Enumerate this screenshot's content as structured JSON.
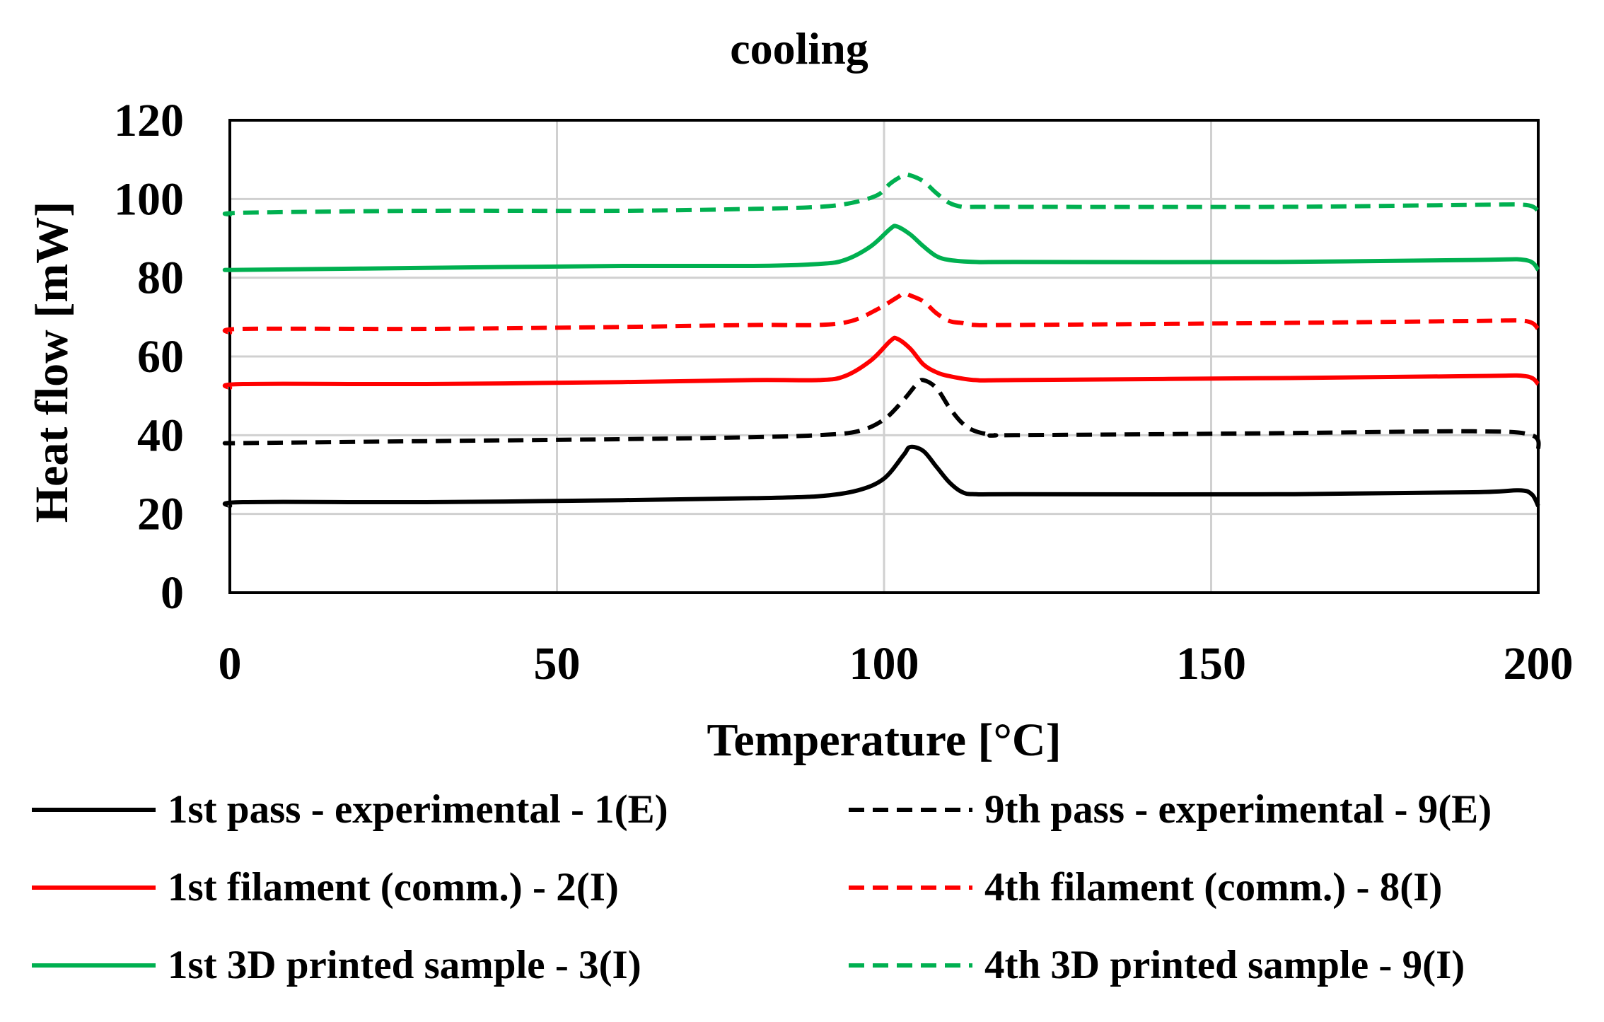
{
  "chart_data": {
    "type": "line",
    "title": "cooling",
    "xlabel": "Temperature [°C]",
    "ylabel": "Heat flow [mW]",
    "xlim": [
      0,
      200
    ],
    "ylim": [
      0,
      120
    ],
    "xticks": [
      "0",
      "50",
      "100",
      "150",
      "200"
    ],
    "yticks": [
      "0",
      "20",
      "40",
      "60",
      "80",
      "100",
      "120"
    ],
    "grid": true,
    "legend_position": "bottom",
    "series": [
      {
        "name": "1st pass - experimental - 1(E)",
        "color": "#000000",
        "dash": "solid",
        "x": [
          0,
          2,
          30,
          60,
          80,
          90,
          96,
          100,
          103,
          104,
          106,
          108,
          110,
          112,
          114,
          120,
          160,
          190,
          197,
          199,
          200
        ],
        "y": [
          22,
          23,
          23,
          23.5,
          24,
          24.5,
          26,
          29,
          35,
          37,
          36,
          32,
          28,
          25.5,
          25,
          25,
          25,
          25.5,
          26,
          25,
          22
        ]
      },
      {
        "name": "9th pass - experimental - 9(E)",
        "color": "#000000",
        "dash": "dashed",
        "x": [
          0,
          2,
          30,
          60,
          80,
          90,
          96,
          100,
          103,
          105,
          106,
          108,
          110,
          112,
          114,
          117,
          120,
          160,
          190,
          199,
          200
        ],
        "y": [
          38,
          38,
          38.5,
          39,
          39.5,
          40,
          41,
          44,
          49,
          53,
          54,
          52,
          47,
          43,
          41,
          40,
          40,
          40.5,
          41,
          40,
          36
        ]
      },
      {
        "name": "1st filament (comm.) - 2(I)",
        "color": "#ff0000",
        "dash": "solid",
        "x": [
          0,
          2,
          30,
          60,
          80,
          90,
          94,
          98,
          101,
          102,
          104,
          106,
          108,
          110,
          114,
          120,
          160,
          190,
          198,
          200
        ],
        "y": [
          52,
          53,
          53,
          53.5,
          54,
          54,
          55,
          59,
          64,
          64.5,
          62,
          58,
          56,
          55,
          54,
          54,
          54.5,
          55,
          55,
          53
        ]
      },
      {
        "name": "4th filament (comm.) - 8(I)",
        "color": "#ff0000",
        "dash": "dashed",
        "x": [
          0,
          2,
          30,
          60,
          80,
          90,
          95,
          99,
          102,
          103,
          104,
          106,
          108,
          110,
          112,
          114,
          120,
          160,
          190,
          198,
          200
        ],
        "y": [
          66,
          67,
          67,
          67.5,
          68,
          68,
          69,
          72,
          75,
          76,
          75.5,
          74,
          71,
          69,
          68.5,
          68,
          68,
          68.5,
          69,
          69,
          67
        ]
      },
      {
        "name": "1st 3D printed sample - 3(I)",
        "color": "#00b050",
        "dash": "solid",
        "x": [
          0,
          2,
          30,
          60,
          80,
          90,
          94,
          98,
          101,
          102,
          104,
          106,
          108,
          110,
          114,
          120,
          160,
          190,
          198,
          200
        ],
        "y": [
          82,
          82,
          82.5,
          83,
          83,
          83.5,
          84.5,
          88,
          92.5,
          93,
          91,
          88,
          85.5,
          84.5,
          84,
          84,
          84,
          84.5,
          84.5,
          82
        ]
      },
      {
        "name": "4th 3D printed sample - 9(I)",
        "color": "#00b050",
        "dash": "dashed",
        "x": [
          0,
          2,
          30,
          60,
          80,
          90,
          95,
          99,
          101,
          103,
          104,
          106,
          108,
          110,
          112,
          114,
          120,
          160,
          190,
          198,
          200
        ],
        "y": [
          96,
          96.5,
          97,
          97,
          97.5,
          98,
          99,
          101,
          104,
          106,
          106,
          104.5,
          101.5,
          99,
          98,
          98,
          98,
          98,
          98.5,
          98.5,
          97
        ]
      }
    ]
  }
}
